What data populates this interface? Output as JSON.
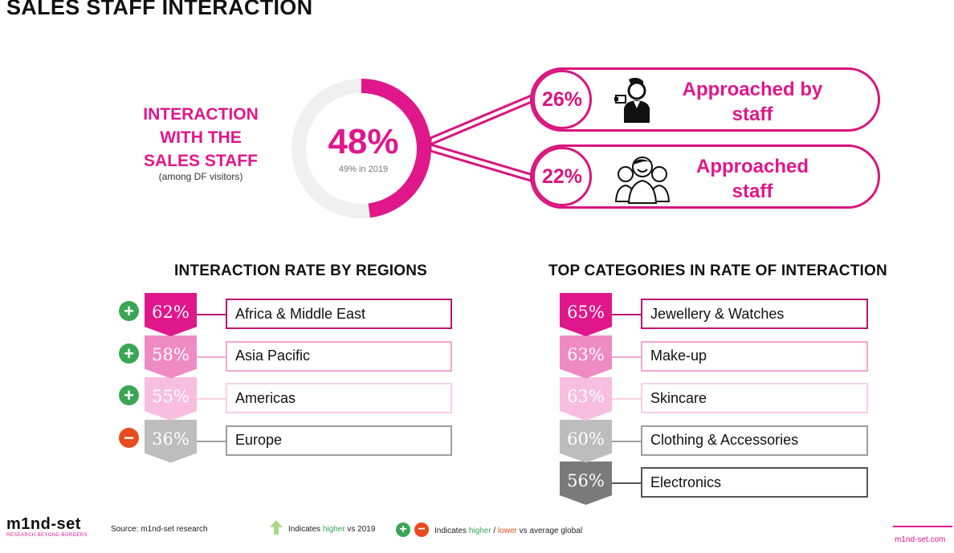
{
  "page_title": "SALES STAFF INTERACTION",
  "interaction": {
    "label_lines": [
      "INTERACTION",
      "WITH THE",
      "SALES STAFF"
    ],
    "sublabel": "(among DF visitors)",
    "value": "48%",
    "value_fraction": 0.48,
    "comparison": "49% in 2019"
  },
  "approaches": [
    {
      "percent": "26%",
      "label_lines": [
        "Approached by",
        "staff"
      ],
      "icon": "single-staff-icon"
    },
    {
      "percent": "22%",
      "label_lines": [
        "Approached",
        "staff"
      ],
      "icon": "group-staff-icon"
    }
  ],
  "chart_data": [
    {
      "type": "bar",
      "title": "INTERACTION RATE BY REGIONS",
      "categories": [
        "Africa & Middle East",
        "Asia Pacific",
        "Americas",
        "Europe"
      ],
      "values": [
        62,
        58,
        55,
        36
      ],
      "value_labels": [
        "62%",
        "58%",
        "55%",
        "36%"
      ],
      "vs_global": [
        "higher",
        "higher",
        "higher",
        "lower"
      ]
    },
    {
      "type": "bar",
      "title": "TOP CATEGORIES IN RATE OF INTERACTION",
      "categories": [
        "Jewellery & Watches",
        "Make-up",
        "Skincare",
        "Clothing & Accessories",
        "Electronics"
      ],
      "values": [
        65,
        63,
        63,
        60,
        56
      ],
      "value_labels": [
        "65%",
        "63%",
        "63%",
        "60%",
        "56%"
      ]
    }
  ],
  "colors": {
    "accent": "#e0178a",
    "seg_region": [
      "#e0178a",
      "#f08ac4",
      "#f7bedf",
      "#bdbdbd"
    ],
    "border_region": [
      "#c0136f",
      "#f3a6d2",
      "#f9cfe7",
      "#9e9e9e"
    ],
    "seg_category": [
      "#e0178a",
      "#f08ac4",
      "#f7bedf",
      "#bdbdbd",
      "#7a7a7a"
    ],
    "border_category": [
      "#c0136f",
      "#f3a6d2",
      "#f9cfe7",
      "#9e9e9e",
      "#555555"
    ],
    "plus": "#3aa655",
    "minus": "#e84b1e",
    "arrow_up": "#a8d98a"
  },
  "footer": {
    "logo_main": "m1nd-set",
    "logo_tagline": "RESEARCH BEYOND BORDERS",
    "source": "Source: m1nd-set research",
    "legend_arrow_prefix": "Indicates ",
    "legend_arrow_highlight": "higher",
    "legend_arrow_suffix": " vs 2019",
    "legend_sign_prefix": "Indicates ",
    "legend_sign_higher": "higher",
    "legend_sign_sep": " / ",
    "legend_sign_lower": "lower",
    "legend_sign_suffix": " vs average global",
    "website": "m1nd-set.com"
  }
}
